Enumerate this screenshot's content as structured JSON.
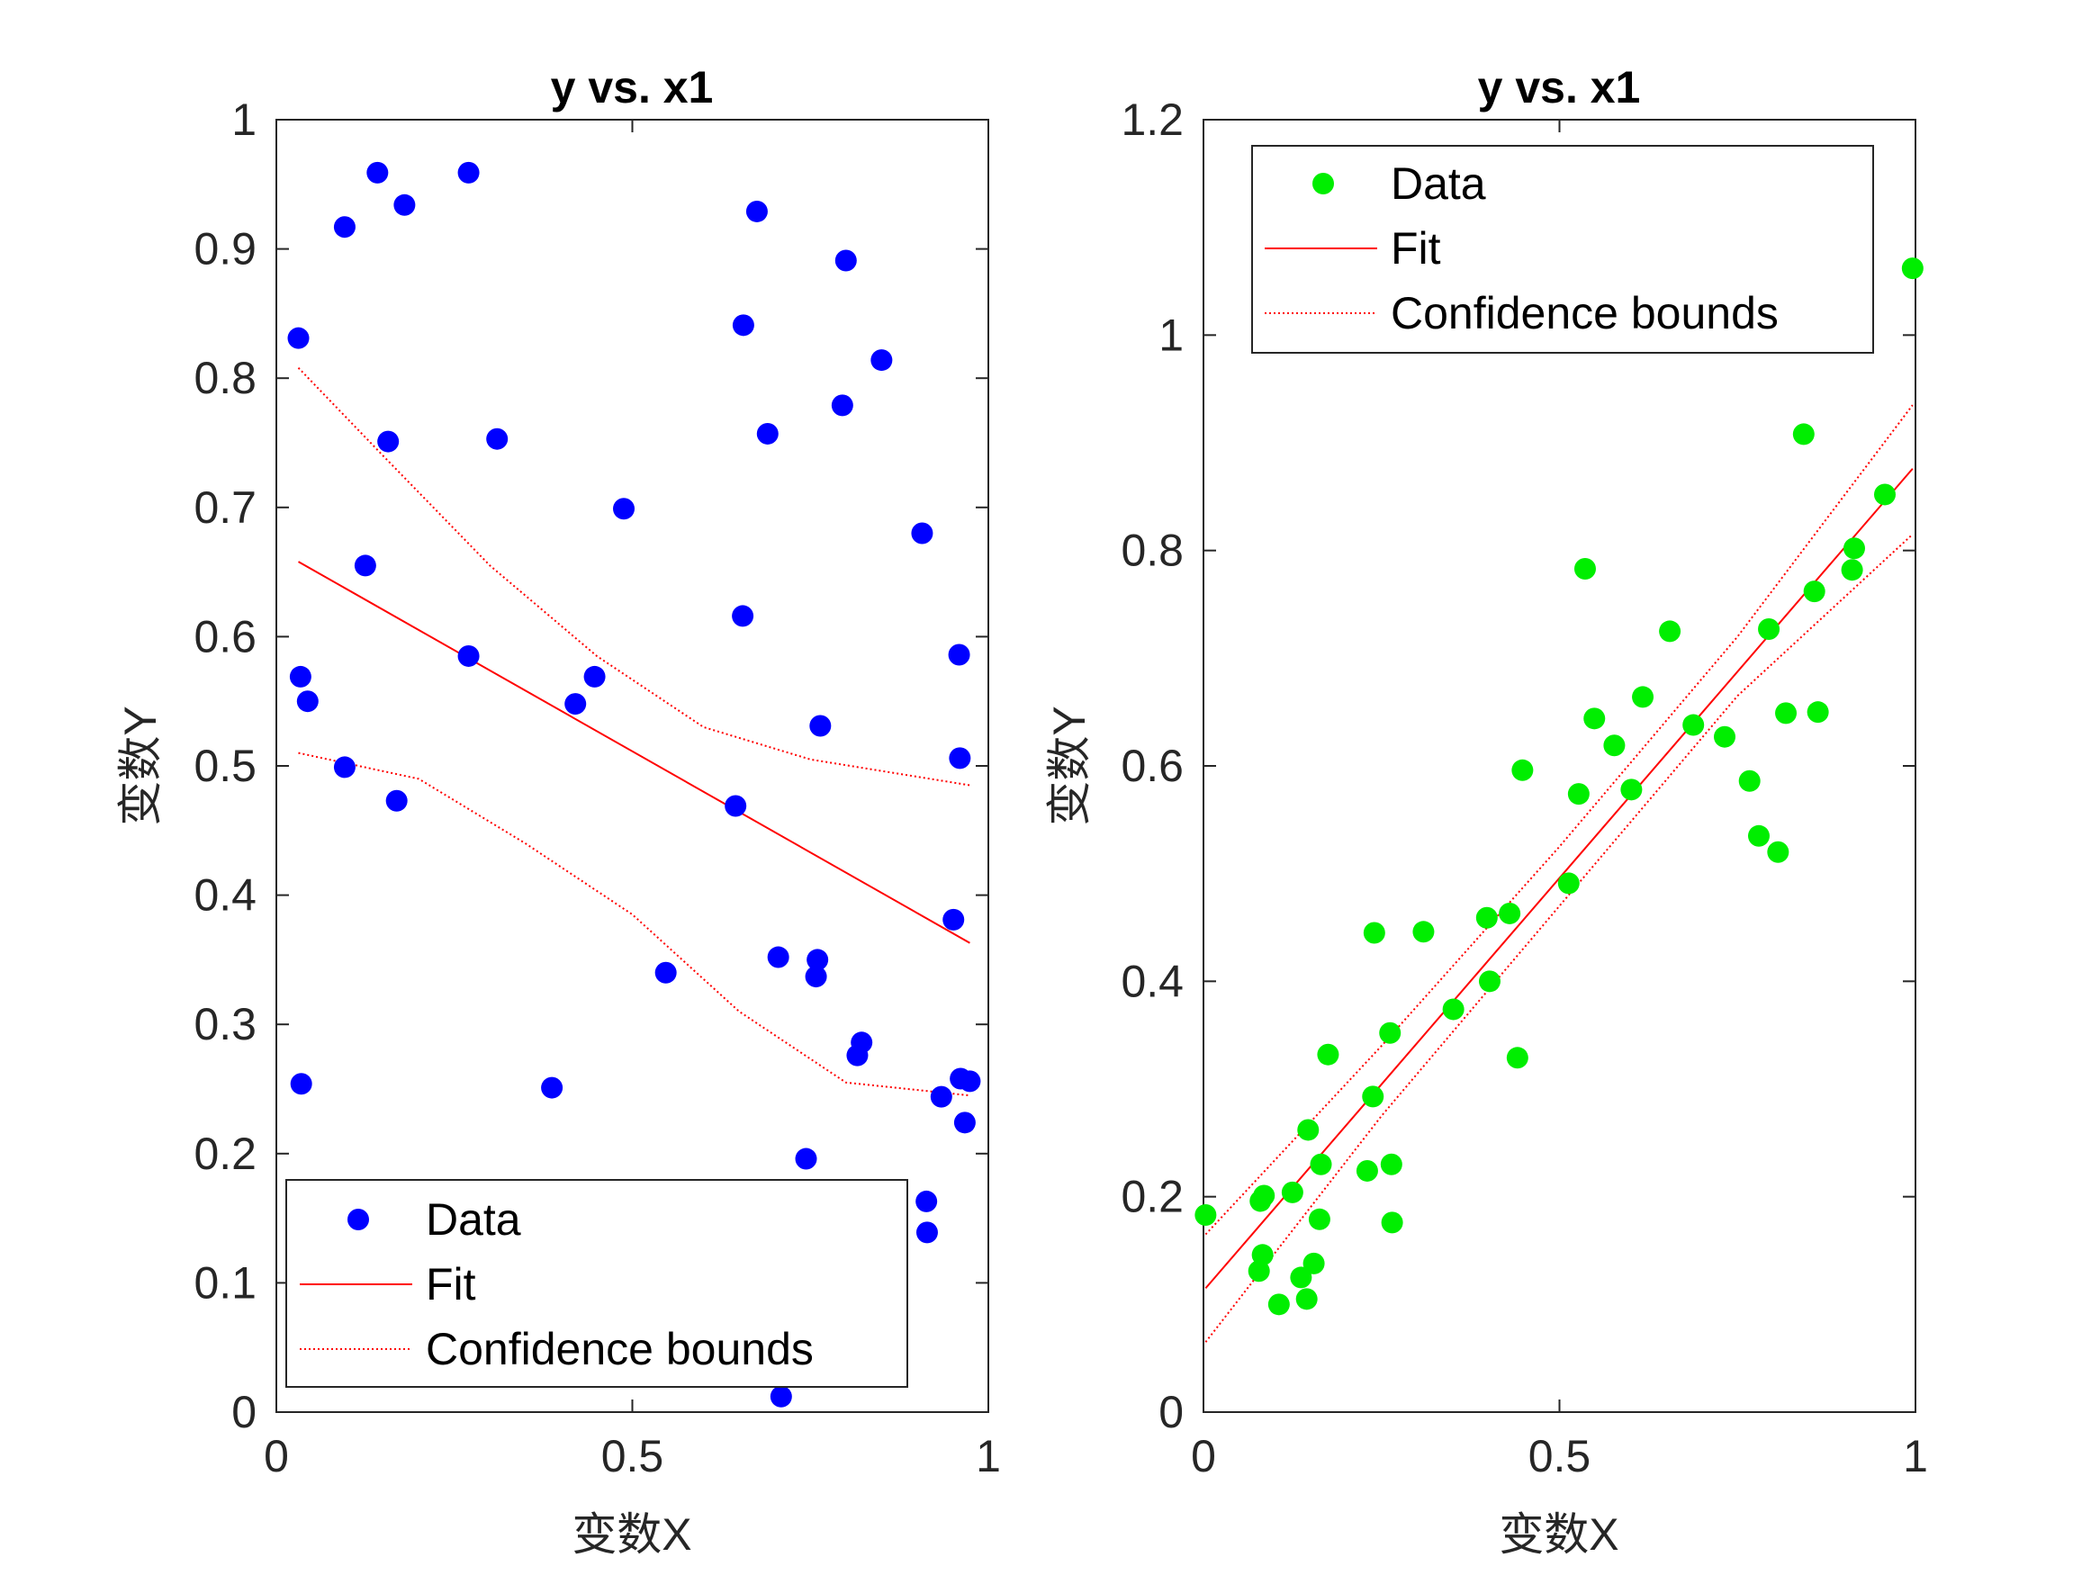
{
  "chart_data": [
    {
      "type": "scatter",
      "title": "y vs. x1",
      "xlabel": "变数X",
      "ylabel": "变数Y",
      "xlim": [
        0,
        1
      ],
      "ylim": [
        0,
        1
      ],
      "xticks": [
        "0",
        "0.5",
        "1"
      ],
      "yticks": [
        "0",
        "0.1",
        "0.2",
        "0.3",
        "0.4",
        "0.5",
        "0.6",
        "0.7",
        "0.8",
        "0.9",
        "1"
      ],
      "legend_position": "bottom-left",
      "legend": [
        "Data",
        "Fit",
        "Confidence bounds"
      ],
      "colors": {
        "data": "#0000ff",
        "fit": "#ff0000",
        "bounds": "#ff0000"
      },
      "series": [
        {
          "name": "Data",
          "points": [
            [
              0.031,
              0.831
            ],
            [
              0.096,
              0.917
            ],
            [
              0.142,
              0.959
            ],
            [
              0.18,
              0.934
            ],
            [
              0.27,
              0.959
            ],
            [
              0.034,
              0.569
            ],
            [
              0.044,
              0.55
            ],
            [
              0.096,
              0.499
            ],
            [
              0.125,
              0.655
            ],
            [
              0.157,
              0.751
            ],
            [
              0.169,
              0.473
            ],
            [
              0.035,
              0.254
            ],
            [
              0.27,
              0.585
            ],
            [
              0.31,
              0.753
            ],
            [
              0.387,
              0.251
            ],
            [
              0.42,
              0.548
            ],
            [
              0.447,
              0.569
            ],
            [
              0.488,
              0.699
            ],
            [
              0.547,
              0.34
            ],
            [
              0.645,
              0.469
            ],
            [
              0.655,
              0.616
            ],
            [
              0.656,
              0.841
            ],
            [
              0.675,
              0.929
            ],
            [
              0.69,
              0.757
            ],
            [
              0.705,
              0.352
            ],
            [
              0.709,
              0.012
            ],
            [
              0.744,
              0.196
            ],
            [
              0.758,
              0.337
            ],
            [
              0.76,
              0.35
            ],
            [
              0.764,
              0.531
            ],
            [
              0.795,
              0.779
            ],
            [
              0.8,
              0.891
            ],
            [
              0.816,
              0.276
            ],
            [
              0.822,
              0.286
            ],
            [
              0.85,
              0.814
            ],
            [
              0.907,
              0.68
            ],
            [
              0.913,
              0.163
            ],
            [
              0.914,
              0.139
            ],
            [
              0.934,
              0.244
            ],
            [
              0.951,
              0.381
            ],
            [
              0.959,
              0.586
            ],
            [
              0.96,
              0.506
            ],
            [
              0.961,
              0.258
            ],
            [
              0.967,
              0.224
            ],
            [
              0.974,
              0.256
            ]
          ]
        },
        {
          "name": "Fit",
          "line": [
            [
              0.031,
              0.658
            ],
            [
              0.974,
              0.363
            ]
          ]
        },
        {
          "name": "Confidence bounds",
          "upper": [
            [
              0.031,
              0.808
            ],
            [
              0.15,
              0.74
            ],
            [
              0.3,
              0.655
            ],
            [
              0.45,
              0.585
            ],
            [
              0.6,
              0.53
            ],
            [
              0.75,
              0.505
            ],
            [
              0.974,
              0.485
            ]
          ],
          "lower": [
            [
              0.031,
              0.51
            ],
            [
              0.2,
              0.49
            ],
            [
              0.35,
              0.44
            ],
            [
              0.5,
              0.385
            ],
            [
              0.65,
              0.31
            ],
            [
              0.8,
              0.255
            ],
            [
              0.974,
              0.245
            ]
          ]
        }
      ]
    },
    {
      "type": "scatter",
      "title": "y vs. x1",
      "xlabel": "变数X",
      "ylabel": "变数Y",
      "xlim": [
        0,
        1
      ],
      "ylim": [
        0,
        1.2
      ],
      "xticks": [
        "0",
        "0.5",
        "1"
      ],
      "yticks": [
        "0",
        "0.2",
        "0.4",
        "0.6",
        "0.8",
        "1",
        "1.2"
      ],
      "legend_position": "top-left",
      "legend": [
        "Data",
        "Fit",
        "Confidence bounds"
      ],
      "colors": {
        "data": "#00ee00",
        "fit": "#ff0000",
        "bounds": "#ff0000"
      },
      "series": [
        {
          "name": "Data",
          "points": [
            [
              0.003,
              0.183
            ],
            [
              0.078,
              0.131
            ],
            [
              0.08,
              0.196
            ],
            [
              0.083,
              0.146
            ],
            [
              0.085,
              0.201
            ],
            [
              0.106,
              0.1
            ],
            [
              0.125,
              0.204
            ],
            [
              0.137,
              0.125
            ],
            [
              0.145,
              0.105
            ],
            [
              0.147,
              0.262
            ],
            [
              0.155,
              0.138
            ],
            [
              0.163,
              0.179
            ],
            [
              0.165,
              0.23
            ],
            [
              0.175,
              0.332
            ],
            [
              0.23,
              0.224
            ],
            [
              0.238,
              0.293
            ],
            [
              0.24,
              0.445
            ],
            [
              0.262,
              0.352
            ],
            [
              0.264,
              0.23
            ],
            [
              0.265,
              0.176
            ],
            [
              0.309,
              0.446
            ],
            [
              0.351,
              0.374
            ],
            [
              0.398,
              0.459
            ],
            [
              0.402,
              0.4
            ],
            [
              0.43,
              0.463
            ],
            [
              0.441,
              0.329
            ],
            [
              0.448,
              0.596
            ],
            [
              0.513,
              0.491
            ],
            [
              0.527,
              0.574
            ],
            [
              0.536,
              0.783
            ],
            [
              0.549,
              0.644
            ],
            [
              0.577,
              0.619
            ],
            [
              0.601,
              0.578
            ],
            [
              0.617,
              0.664
            ],
            [
              0.655,
              0.725
            ],
            [
              0.688,
              0.638
            ],
            [
              0.732,
              0.627
            ],
            [
              0.767,
              0.586
            ],
            [
              0.78,
              0.535
            ],
            [
              0.794,
              0.727
            ],
            [
              0.807,
              0.52
            ],
            [
              0.818,
              0.649
            ],
            [
              0.843,
              0.908
            ],
            [
              0.858,
              0.762
            ],
            [
              0.863,
              0.65
            ],
            [
              0.911,
              0.782
            ],
            [
              0.914,
              0.802
            ],
            [
              0.957,
              0.852
            ],
            [
              0.996,
              1.062
            ]
          ]
        },
        {
          "name": "Fit",
          "line": [
            [
              0.003,
              0.115
            ],
            [
              0.996,
              0.876
            ]
          ]
        },
        {
          "name": "Confidence bounds",
          "upper": [
            [
              0.003,
              0.165
            ],
            [
              0.25,
              0.34
            ],
            [
              0.5,
              0.525
            ],
            [
              0.75,
              0.72
            ],
            [
              0.996,
              0.935
            ]
          ],
          "lower": [
            [
              0.003,
              0.065
            ],
            [
              0.25,
              0.275
            ],
            [
              0.5,
              0.47
            ],
            [
              0.75,
              0.665
            ],
            [
              0.996,
              0.815
            ]
          ]
        }
      ]
    }
  ]
}
